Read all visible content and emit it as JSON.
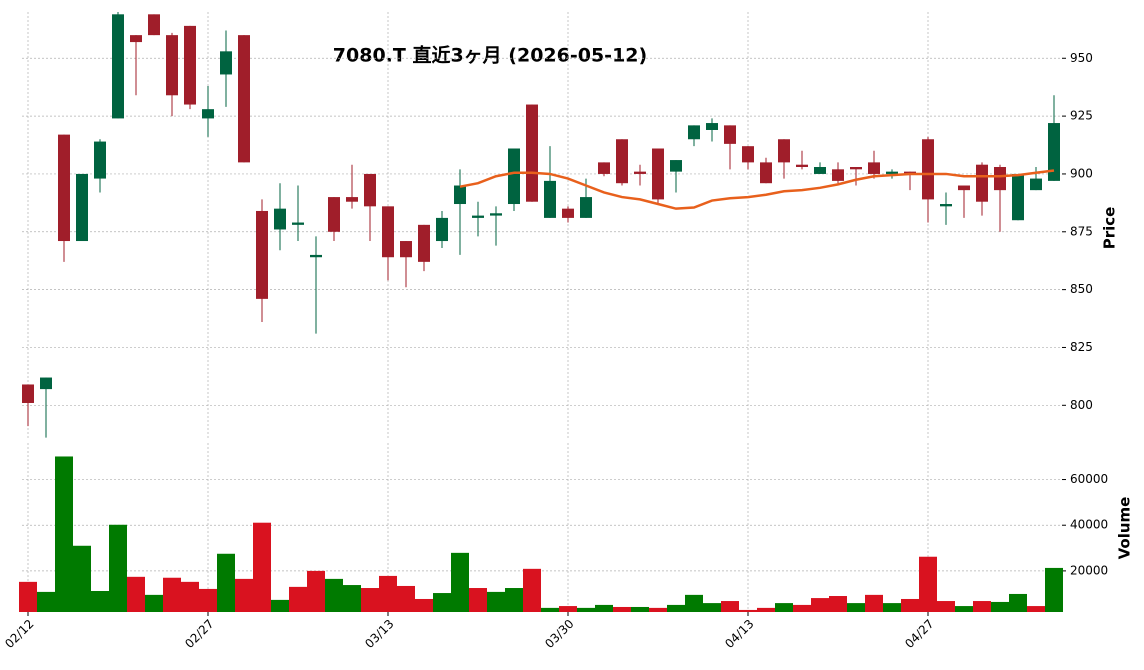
{
  "chart_data": {
    "type": "candlestick",
    "title": "7080.T  直近3ヶ月  (2026-05-12)",
    "ylabel": "Price",
    "categories": [
      "02/12",
      null,
      null,
      null,
      null,
      null,
      null,
      null,
      null,
      null,
      "02/27",
      null,
      null,
      null,
      null,
      null,
      null,
      null,
      null,
      null,
      "03/13",
      null,
      null,
      null,
      null,
      null,
      null,
      null,
      null,
      null,
      "03/30",
      null,
      null,
      null,
      null,
      null,
      null,
      null,
      null,
      null,
      "04/13",
      null,
      null,
      null,
      null,
      null,
      null,
      null,
      null,
      null,
      "04/27",
      null,
      null,
      null,
      null,
      null,
      null,
      null
    ],
    "open": [
      809,
      807,
      917,
      871,
      898,
      924,
      960,
      969,
      960,
      964,
      924,
      943,
      960,
      884,
      876,
      878,
      864,
      890,
      890,
      900,
      886,
      871,
      878,
      871,
      887,
      881,
      882,
      887,
      930,
      881,
      885,
      881,
      905,
      915,
      901,
      911,
      901,
      915,
      919,
      921,
      912,
      905,
      915,
      904,
      900,
      902,
      903,
      905,
      900,
      901,
      915,
      886,
      895,
      904,
      903,
      880,
      893,
      897
    ],
    "high": [
      809,
      812,
      917,
      900,
      915,
      970,
      960,
      969,
      961,
      964,
      938,
      962,
      960,
      889,
      896,
      895,
      873,
      890,
      904,
      900,
      886,
      871,
      878,
      884,
      902,
      888,
      886,
      911,
      930,
      912,
      886,
      898,
      905,
      915,
      904,
      911,
      906,
      921,
      924,
      921,
      912,
      907,
      915,
      910,
      905,
      905,
      903,
      910,
      902,
      901,
      916,
      892,
      895,
      905,
      904,
      900,
      903,
      934
    ],
    "low": [
      791,
      786,
      862,
      871,
      892,
      924,
      934,
      960,
      925,
      928,
      916,
      929,
      905,
      836,
      867,
      871,
      831,
      871,
      885,
      871,
      854,
      851,
      858,
      868,
      865,
      873,
      869,
      884,
      888,
      881,
      879,
      881,
      899,
      895,
      895,
      887,
      892,
      912,
      914,
      902,
      902,
      896,
      898,
      902,
      900,
      896,
      895,
      898,
      898,
      893,
      879,
      878,
      881,
      882,
      875,
      880,
      893,
      897
    ],
    "close": [
      801,
      812,
      871,
      900,
      914,
      969,
      957,
      960,
      934,
      930,
      928,
      953,
      905,
      846,
      885,
      879,
      865,
      875,
      888,
      886,
      864,
      864,
      862,
      881,
      895,
      882,
      883,
      911,
      888,
      897,
      881,
      890,
      900,
      896,
      900,
      889,
      906,
      921,
      922,
      913,
      905,
      896,
      905,
      903,
      903,
      897,
      902,
      900,
      901,
      900,
      889,
      887,
      893,
      888,
      893,
      900,
      898,
      922
    ],
    "up_color": "#006340",
    "down_color": "#a01e2a",
    "ma": {
      "color": "#e8601c",
      "values": [
        null,
        null,
        null,
        null,
        null,
        null,
        null,
        null,
        null,
        null,
        null,
        null,
        null,
        null,
        null,
        null,
        null,
        null,
        null,
        null,
        null,
        null,
        null,
        null,
        894.5,
        896,
        899,
        900.5,
        900.5,
        900,
        898,
        895,
        892,
        890,
        889,
        887,
        885,
        885.5,
        888.5,
        889.5,
        890,
        891,
        892.5,
        893,
        894,
        895.5,
        897.5,
        899,
        899.5,
        900,
        900,
        900,
        899,
        899,
        899,
        899.5,
        900.5,
        901.5
      ]
    },
    "ylim": [
      785,
      970
    ],
    "yticks": [
      800,
      825,
      850,
      875,
      900,
      925,
      950
    ],
    "grid": true,
    "volume": {
      "ylabel": "Volume",
      "values": [
        15200,
        10800,
        70100,
        31000,
        11200,
        40200,
        17400,
        9500,
        17000,
        15200,
        12100,
        27500,
        16500,
        41100,
        7300,
        13000,
        20000,
        16500,
        13800,
        12500,
        17800,
        13400,
        7700,
        10300,
        27900,
        12500,
        10800,
        12500,
        20900,
        3800,
        4600,
        3800,
        5100,
        4200,
        4200,
        3800,
        5100,
        9500,
        5900,
        6800,
        2900,
        3800,
        5900,
        5100,
        8100,
        9000,
        5900,
        9500,
        5900,
        7700,
        26200,
        6800,
        4600,
        6800,
        6400,
        9900,
        4600,
        21300
      ],
      "colors": [
        "#d9121f",
        "#007a00",
        "#007a00",
        "#007a00",
        "#007a00",
        "#007a00",
        "#d9121f",
        "#007a00",
        "#d9121f",
        "#d9121f",
        "#d9121f",
        "#007a00",
        "#d9121f",
        "#d9121f",
        "#007a00",
        "#d9121f",
        "#d9121f",
        "#007a00",
        "#007a00",
        "#d9121f",
        "#d9121f",
        "#d9121f",
        "#d9121f",
        "#007a00",
        "#007a00",
        "#d9121f",
        "#007a00",
        "#007a00",
        "#d9121f",
        "#007a00",
        "#d9121f",
        "#007a00",
        "#007a00",
        "#d9121f",
        "#007a00",
        "#d9121f",
        "#007a00",
        "#007a00",
        "#007a00",
        "#d9121f",
        "#d9121f",
        "#d9121f",
        "#007a00",
        "#d9121f",
        "#d9121f",
        "#d9121f",
        "#007a00",
        "#d9121f",
        "#007a00",
        "#d9121f",
        "#d9121f",
        "#d9121f",
        "#007a00",
        "#d9121f",
        "#007a00",
        "#007a00",
        "#d9121f",
        "#007a00"
      ],
      "ylim": [
        2000,
        76000
      ],
      "yticks": [
        20000,
        40000,
        60000
      ]
    }
  }
}
